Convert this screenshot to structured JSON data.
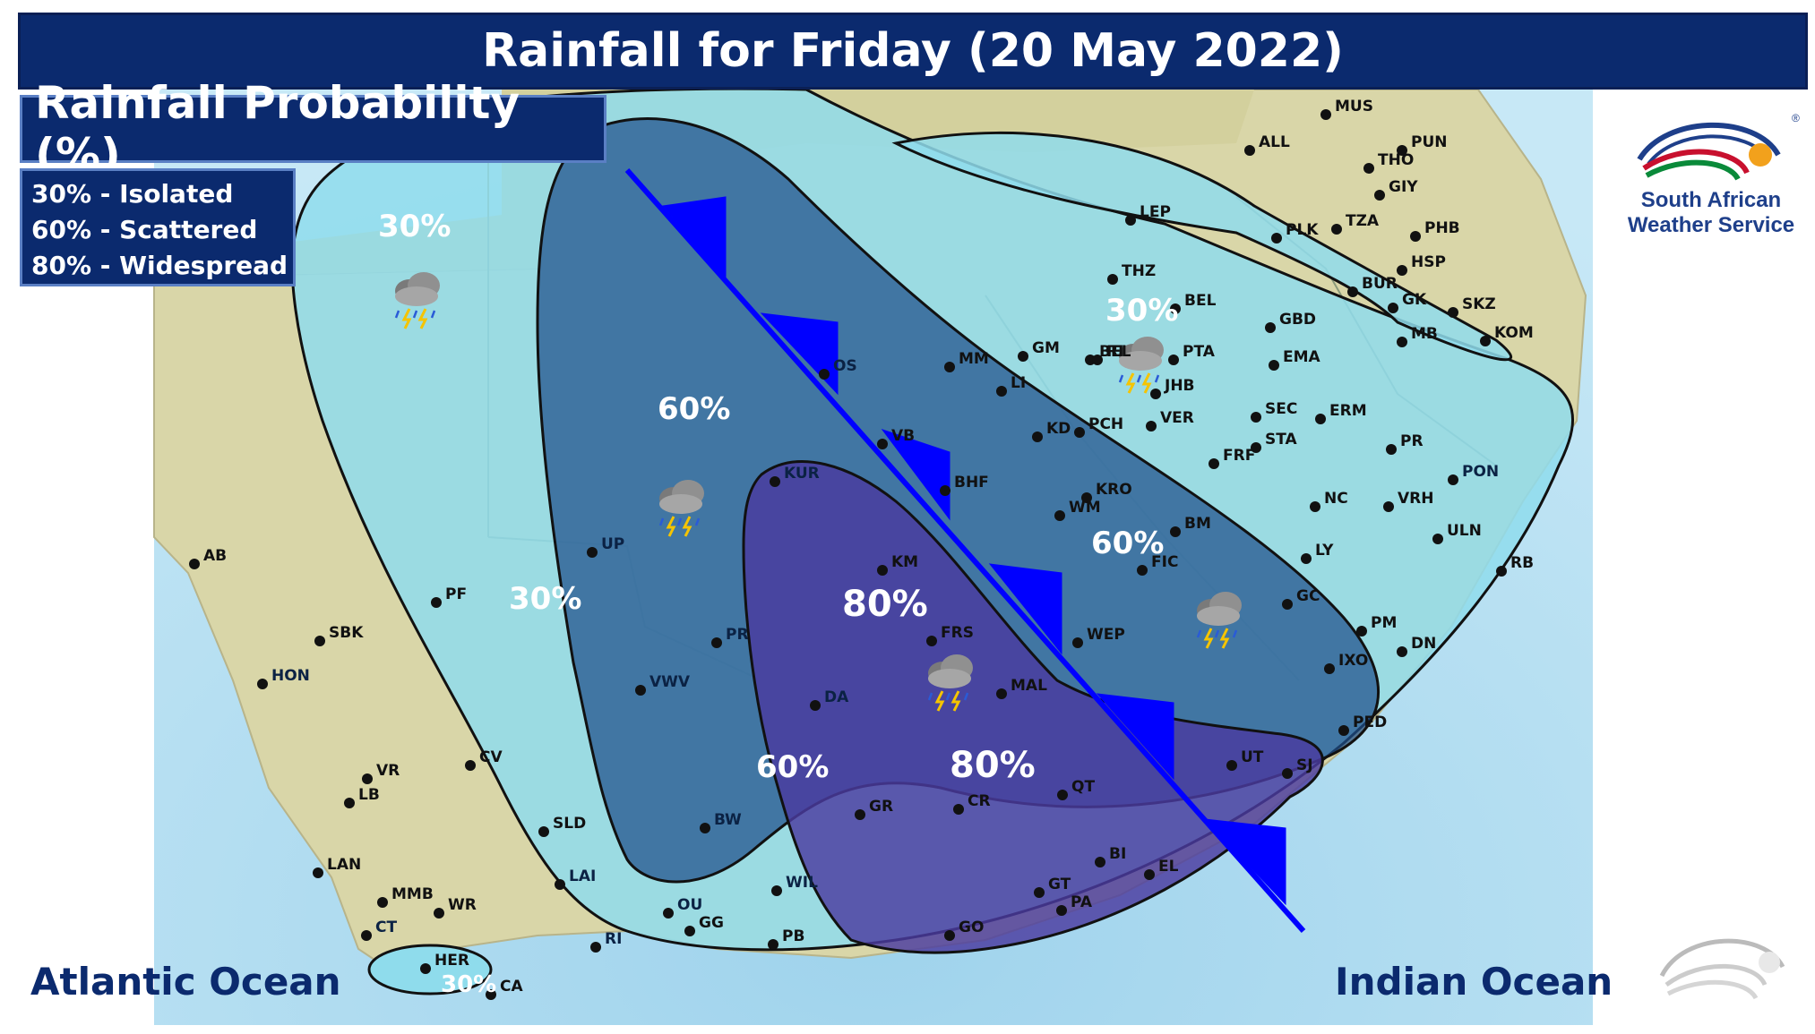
{
  "title": "Rainfall for Friday (20 May 2022)",
  "legend": {
    "heading": "Rainfall Probability (%)",
    "items": [
      "30% - Isolated",
      "60% - Scattered",
      "80% - Widespread"
    ]
  },
  "logo": {
    "line1": "South African",
    "line2": "Weather Service",
    "registered": "®"
  },
  "oceans": {
    "atlantic": "Atlantic Ocean",
    "indian": "Indian Ocean"
  },
  "zones": {
    "outer_30": "30%",
    "east_30": "30%",
    "west_30": "30%",
    "cape_30": "30%",
    "center_60": "60%",
    "east_60": "60%",
    "south_60": "60%",
    "north_80": "80%",
    "south_80": "80%"
  },
  "colors": {
    "zone30": "#8fdcec",
    "zone60": "#1f4f8a",
    "zone80": "#4b3aa0",
    "front": "#0000ff",
    "header": "#0b2a6e"
  },
  "icons": [
    "thunderstorm-icon"
  ],
  "stations": [
    {
      "code": "MUS"
    },
    {
      "code": "ALL"
    },
    {
      "code": "PUN"
    },
    {
      "code": "THO"
    },
    {
      "code": "GIY"
    },
    {
      "code": "LEP"
    },
    {
      "code": "PLK"
    },
    {
      "code": "TZA"
    },
    {
      "code": "PHB"
    },
    {
      "code": "HSP"
    },
    {
      "code": "THZ"
    },
    {
      "code": "BUR"
    },
    {
      "code": "BEL"
    },
    {
      "code": "GK"
    },
    {
      "code": "SKZ"
    },
    {
      "code": "GBD"
    },
    {
      "code": "MB"
    },
    {
      "code": "KOM"
    },
    {
      "code": "GM"
    },
    {
      "code": "BEL"
    },
    {
      "code": "PTA"
    },
    {
      "code": "EMA"
    },
    {
      "code": "MM"
    },
    {
      "code": "RI"
    },
    {
      "code": "OS"
    },
    {
      "code": "LI"
    },
    {
      "code": "JHB"
    },
    {
      "code": "SEC"
    },
    {
      "code": "ERM"
    },
    {
      "code": "PCH"
    },
    {
      "code": "VER"
    },
    {
      "code": "KD"
    },
    {
      "code": "STA"
    },
    {
      "code": "VB"
    },
    {
      "code": "FRF"
    },
    {
      "code": "PR"
    },
    {
      "code": "PON"
    },
    {
      "code": "KUR"
    },
    {
      "code": "BHF"
    },
    {
      "code": "KRO"
    },
    {
      "code": "NC"
    },
    {
      "code": "VRH"
    },
    {
      "code": "WM"
    },
    {
      "code": "ULN"
    },
    {
      "code": "BM"
    },
    {
      "code": "LY"
    },
    {
      "code": "UP"
    },
    {
      "code": "KM"
    },
    {
      "code": "FIC"
    },
    {
      "code": "RB"
    },
    {
      "code": "AB"
    },
    {
      "code": "PF"
    },
    {
      "code": "GC"
    },
    {
      "code": "FRS"
    },
    {
      "code": "PM"
    },
    {
      "code": "SBK"
    },
    {
      "code": "PR"
    },
    {
      "code": "WEP"
    },
    {
      "code": "DN"
    },
    {
      "code": "IXO"
    },
    {
      "code": "HON"
    },
    {
      "code": "VWV"
    },
    {
      "code": "DA"
    },
    {
      "code": "MAL"
    },
    {
      "code": "PED"
    },
    {
      "code": "CV"
    },
    {
      "code": "VR"
    },
    {
      "code": "UT"
    },
    {
      "code": "SJ"
    },
    {
      "code": "LB"
    },
    {
      "code": "QT"
    },
    {
      "code": "GR"
    },
    {
      "code": "CR"
    },
    {
      "code": "SLD"
    },
    {
      "code": "BW"
    },
    {
      "code": "LAN"
    },
    {
      "code": "BI"
    },
    {
      "code": "EL"
    },
    {
      "code": "LAI"
    },
    {
      "code": "MMB"
    },
    {
      "code": "WIL"
    },
    {
      "code": "GT"
    },
    {
      "code": "WR"
    },
    {
      "code": "OU"
    },
    {
      "code": "PA"
    },
    {
      "code": "CT"
    },
    {
      "code": "GG"
    },
    {
      "code": "RI"
    },
    {
      "code": "GO"
    },
    {
      "code": "PB"
    },
    {
      "code": "HER"
    },
    {
      "code": "CA"
    }
  ]
}
